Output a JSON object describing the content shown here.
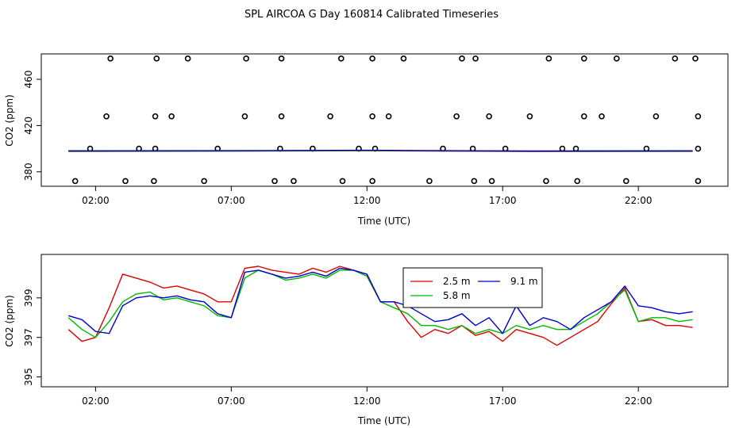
{
  "title": "SPL AIRCOA G  Day 160814  Calibrated Timeseries",
  "colors": {
    "red": "#dd0000",
    "green": "#00bb00",
    "blue": "#0000cc",
    "black": "#000000"
  },
  "chart_data": [
    {
      "type": "scatter",
      "xlabel": "Time (UTC)",
      "ylabel": "CO2 (ppm)",
      "xlim": [
        0.0,
        25.3
      ],
      "ylim": [
        367.5,
        482
      ],
      "x_ticks": [
        2,
        7,
        12,
        17,
        22
      ],
      "x_tick_labels": [
        "02:00",
        "07:00",
        "12:00",
        "17:00",
        "22:00"
      ],
      "y_ticks": [
        380,
        420,
        460
      ],
      "y_tick_labels": [
        "380",
        "420",
        "460"
      ],
      "grid": false,
      "points": [
        {
          "x": 1.25,
          "y": 372
        },
        {
          "x": 3.1,
          "y": 372
        },
        {
          "x": 4.15,
          "y": 372
        },
        {
          "x": 6.0,
          "y": 372
        },
        {
          "x": 8.6,
          "y": 372
        },
        {
          "x": 9.3,
          "y": 372
        },
        {
          "x": 11.1,
          "y": 372
        },
        {
          "x": 12.2,
          "y": 372
        },
        {
          "x": 14.3,
          "y": 372
        },
        {
          "x": 15.95,
          "y": 372
        },
        {
          "x": 16.6,
          "y": 372
        },
        {
          "x": 18.6,
          "y": 372
        },
        {
          "x": 19.75,
          "y": 372
        },
        {
          "x": 21.55,
          "y": 372
        },
        {
          "x": 24.2,
          "y": 372
        },
        {
          "x": 1.8,
          "y": 400
        },
        {
          "x": 3.6,
          "y": 400
        },
        {
          "x": 4.2,
          "y": 400
        },
        {
          "x": 6.5,
          "y": 400
        },
        {
          "x": 8.8,
          "y": 400
        },
        {
          "x": 10.0,
          "y": 400
        },
        {
          "x": 11.7,
          "y": 400
        },
        {
          "x": 12.3,
          "y": 400
        },
        {
          "x": 14.8,
          "y": 400
        },
        {
          "x": 15.9,
          "y": 400
        },
        {
          "x": 17.1,
          "y": 400
        },
        {
          "x": 19.2,
          "y": 400
        },
        {
          "x": 19.7,
          "y": 400
        },
        {
          "x": 22.3,
          "y": 400
        },
        {
          "x": 24.2,
          "y": 400
        },
        {
          "x": 2.4,
          "y": 428
        },
        {
          "x": 4.2,
          "y": 428
        },
        {
          "x": 4.8,
          "y": 428
        },
        {
          "x": 7.5,
          "y": 428
        },
        {
          "x": 8.85,
          "y": 428
        },
        {
          "x": 10.65,
          "y": 428
        },
        {
          "x": 12.2,
          "y": 428
        },
        {
          "x": 12.8,
          "y": 428
        },
        {
          "x": 15.3,
          "y": 428
        },
        {
          "x": 16.5,
          "y": 428
        },
        {
          "x": 18.0,
          "y": 428
        },
        {
          "x": 20.0,
          "y": 428
        },
        {
          "x": 20.65,
          "y": 428
        },
        {
          "x": 22.65,
          "y": 428
        },
        {
          "x": 24.2,
          "y": 428
        },
        {
          "x": 2.55,
          "y": 478
        },
        {
          "x": 4.25,
          "y": 478
        },
        {
          "x": 5.4,
          "y": 478
        },
        {
          "x": 7.55,
          "y": 478
        },
        {
          "x": 8.85,
          "y": 478
        },
        {
          "x": 11.05,
          "y": 478
        },
        {
          "x": 12.2,
          "y": 478
        },
        {
          "x": 13.35,
          "y": 478
        },
        {
          "x": 15.5,
          "y": 478
        },
        {
          "x": 16.0,
          "y": 478
        },
        {
          "x": 18.7,
          "y": 478
        },
        {
          "x": 20.0,
          "y": 478
        },
        {
          "x": 21.2,
          "y": 478
        },
        {
          "x": 23.35,
          "y": 478
        },
        {
          "x": 24.1,
          "y": 478
        }
      ],
      "series": [
        {
          "color": "#dd0000",
          "x": [
            1,
            6,
            12,
            18,
            24
          ],
          "values": [
            397.5,
            397.8,
            398.2,
            397.5,
            397.6
          ]
        },
        {
          "color": "#00bb00",
          "x": [
            1,
            6,
            12,
            18,
            24
          ],
          "values": [
            397.8,
            398.0,
            398.4,
            397.8,
            397.9
          ]
        },
        {
          "color": "#0000cc",
          "x": [
            1,
            6,
            12,
            18,
            24
          ],
          "values": [
            398.2,
            398.3,
            398.6,
            398.0,
            398.2
          ]
        }
      ]
    },
    {
      "type": "line",
      "xlabel": "Time (UTC)",
      "ylabel": "CO2 (ppm)",
      "xlim": [
        0.0,
        25.3
      ],
      "ylim": [
        394.5,
        401.2
      ],
      "x_ticks": [
        2,
        7,
        12,
        17,
        22
      ],
      "x_tick_labels": [
        "02:00",
        "07:00",
        "12:00",
        "17:00",
        "22:00"
      ],
      "y_ticks": [
        395,
        397,
        399
      ],
      "y_tick_labels": [
        "395",
        "397",
        "399"
      ],
      "grid": false,
      "legend": {
        "placement": "center-right",
        "entries": [
          {
            "label": "2.5 m",
            "color": "#dd0000"
          },
          {
            "label": "5.8 m",
            "color": "#00bb00"
          },
          {
            "label": "9.1 m",
            "color": "#0000cc"
          }
        ]
      },
      "x": [
        1.0,
        1.5,
        2.0,
        2.5,
        3.0,
        3.5,
        4.0,
        4.5,
        5.0,
        5.5,
        6.0,
        6.5,
        7.0,
        7.5,
        8.0,
        8.5,
        9.0,
        9.5,
        10.0,
        10.5,
        11.0,
        11.5,
        12.0,
        12.5,
        13.0,
        13.5,
        14.0,
        14.5,
        15.0,
        15.5,
        16.0,
        16.5,
        17.0,
        17.5,
        18.0,
        18.5,
        19.0,
        19.5,
        20.0,
        20.5,
        21.0,
        21.5,
        22.0,
        22.5,
        23.0,
        23.5,
        24.0
      ],
      "series": [
        {
          "name": "2.5 m",
          "color": "#dd0000",
          "values": [
            397.4,
            396.8,
            397.0,
            398.5,
            400.2,
            400.0,
            399.8,
            399.5,
            399.6,
            399.4,
            399.2,
            398.8,
            398.8,
            400.5,
            400.6,
            400.4,
            400.3,
            400.2,
            400.5,
            400.3,
            400.6,
            400.4,
            400.1,
            398.8,
            398.8,
            397.8,
            397.0,
            397.4,
            397.2,
            397.6,
            397.1,
            397.3,
            396.8,
            397.4,
            397.2,
            397.0,
            396.6,
            397.0,
            397.4,
            397.8,
            398.7,
            399.5,
            397.8,
            397.9,
            397.6,
            397.6,
            397.5
          ]
        },
        {
          "name": "5.8 m",
          "color": "#00bb00",
          "values": [
            398.0,
            397.4,
            397.0,
            397.8,
            398.8,
            399.2,
            399.3,
            398.9,
            399.0,
            398.8,
            398.6,
            398.1,
            398.0,
            400.0,
            400.4,
            400.2,
            399.9,
            400.0,
            400.2,
            400.0,
            400.4,
            400.4,
            400.1,
            398.8,
            398.5,
            398.2,
            397.6,
            397.6,
            397.4,
            397.6,
            397.2,
            397.4,
            397.2,
            397.6,
            397.4,
            397.6,
            397.4,
            397.4,
            397.8,
            398.2,
            398.8,
            399.4,
            397.8,
            398.0,
            398.0,
            397.8,
            397.9
          ]
        },
        {
          "name": "9.1 m",
          "color": "#0000cc",
          "values": [
            398.1,
            397.9,
            397.3,
            397.2,
            398.6,
            399.0,
            399.1,
            399.0,
            399.1,
            398.9,
            398.8,
            398.2,
            398.0,
            400.3,
            400.4,
            400.2,
            400.0,
            400.1,
            400.3,
            400.1,
            400.5,
            400.4,
            400.2,
            398.8,
            398.8,
            398.6,
            398.2,
            397.8,
            397.9,
            398.2,
            397.6,
            398.0,
            397.2,
            398.6,
            397.6,
            398.0,
            397.8,
            397.4,
            398.0,
            398.4,
            398.8,
            399.6,
            398.6,
            398.5,
            398.3,
            398.2,
            398.3
          ]
        }
      ]
    }
  ]
}
